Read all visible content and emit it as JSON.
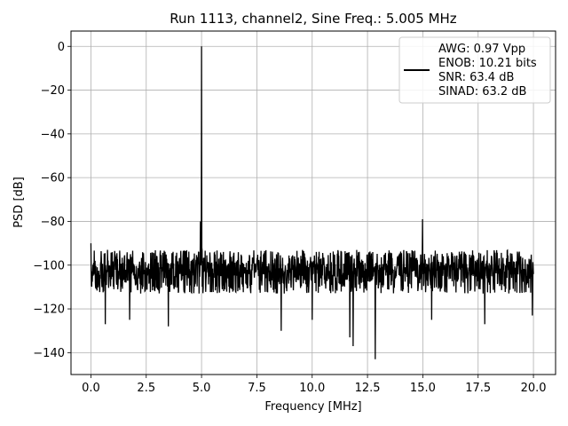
{
  "chart_data": {
    "type": "line",
    "title": "Run 1113, channel2, Sine Freq.: 5.005 MHz",
    "xlabel": "Frequency [MHz]",
    "ylabel": "PSD [dB]",
    "xlim": [
      -0.9,
      21.0
    ],
    "ylim": [
      -150,
      7
    ],
    "xticks": [
      0.0,
      2.5,
      5.0,
      7.5,
      10.0,
      12.5,
      15.0,
      17.5,
      20.0
    ],
    "xtick_labels": [
      "0.0",
      "2.5",
      "5.0",
      "7.5",
      "10.0",
      "12.5",
      "15.0",
      "17.5",
      "20.0"
    ],
    "yticks": [
      0,
      -20,
      -40,
      -60,
      -80,
      -100,
      -120,
      -140
    ],
    "ytick_labels": [
      "0",
      "−20",
      "−40",
      "−60",
      "−80",
      "−100",
      "−120",
      "−140"
    ],
    "grid": true,
    "line_color": "#000000",
    "legend": {
      "placement": "top-right",
      "entries": [
        "AWG: 0.97 Vpp",
        "ENOB: 10.21 bits",
        "SNR: 63.4 dB",
        "SINAD: 63.2 dB"
      ]
    },
    "series": [
      {
        "noise_floor_db": -102,
        "noise_band_db": [
          -113,
          -93
        ],
        "fundamental": {
          "x": 5.005,
          "y": 0
        },
        "spurs": [
          {
            "x": 0.0,
            "y": -90
          },
          {
            "x": 4.95,
            "y": -80
          },
          {
            "x": 14.99,
            "y": -79
          }
        ],
        "dips": [
          {
            "x": 0.65,
            "y": -127
          },
          {
            "x": 1.75,
            "y": -125
          },
          {
            "x": 3.5,
            "y": -128
          },
          {
            "x": 8.6,
            "y": -130
          },
          {
            "x": 10.0,
            "y": -125
          },
          {
            "x": 11.7,
            "y": -133
          },
          {
            "x": 11.85,
            "y": -137
          },
          {
            "x": 12.85,
            "y": -143
          },
          {
            "x": 15.4,
            "y": -125
          },
          {
            "x": 17.8,
            "y": -127
          },
          {
            "x": 19.95,
            "y": -123
          }
        ]
      }
    ]
  }
}
